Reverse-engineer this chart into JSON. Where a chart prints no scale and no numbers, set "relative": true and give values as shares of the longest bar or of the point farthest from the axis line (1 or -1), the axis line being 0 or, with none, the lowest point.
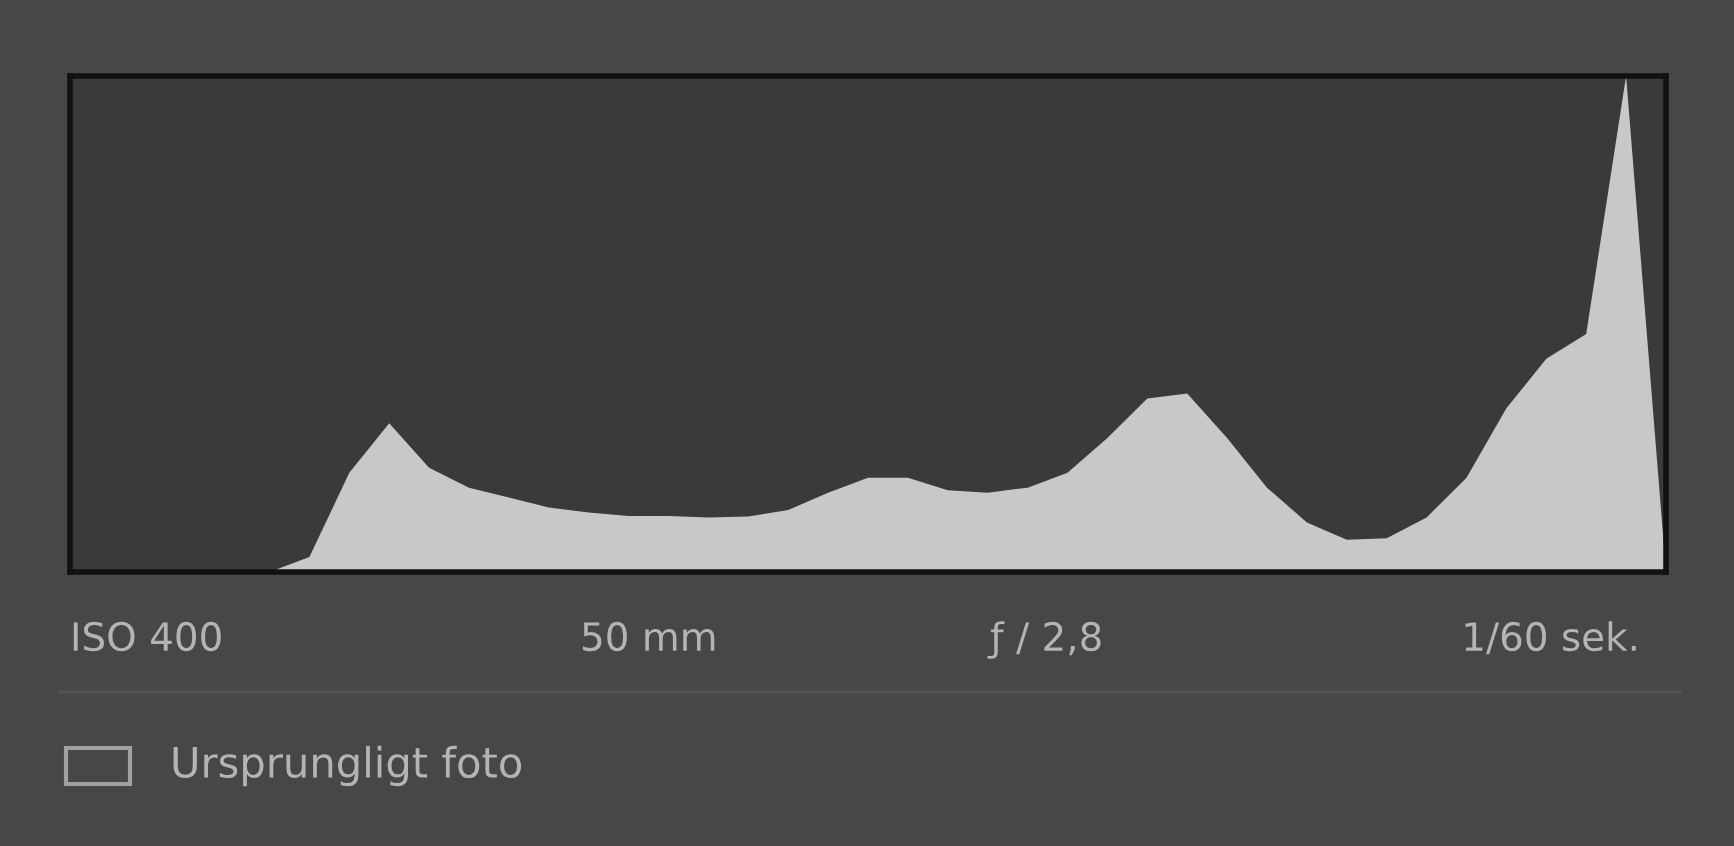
{
  "chart_data": {
    "type": "area",
    "relative": true,
    "categories": [
      null,
      null,
      null,
      null,
      null,
      null,
      null,
      null,
      null,
      null,
      null,
      null,
      null,
      null,
      null,
      null,
      null,
      null,
      null,
      null,
      null,
      null,
      null,
      null,
      null,
      null,
      null,
      null,
      null,
      null,
      null,
      null,
      null,
      null,
      null,
      null,
      null,
      null,
      null,
      null,
      null
    ],
    "series": [
      {
        "color": "#c8c8c8",
        "values": [
          0,
          0,
          0,
          0,
          0,
          0,
          0.03,
          0.2,
          0.3,
          0.21,
          0.17,
          0.15,
          0.13,
          0.12,
          0.113,
          0.113,
          0.11,
          0.112,
          0.125,
          0.16,
          0.19,
          0.19,
          0.165,
          0.16,
          0.17,
          0.2,
          0.27,
          0.35,
          0.36,
          0.27,
          0.17,
          0.1,
          0.065,
          0.068,
          0.11,
          0.19,
          0.33,
          0.43,
          0.48,
          1,
          0
        ]
      }
    ],
    "annotations": [
      "ISO 400",
      "50 mm",
      "ƒ / 2,8",
      "1/60 sek.",
      "Ursprungligt foto"
    ]
  }
}
